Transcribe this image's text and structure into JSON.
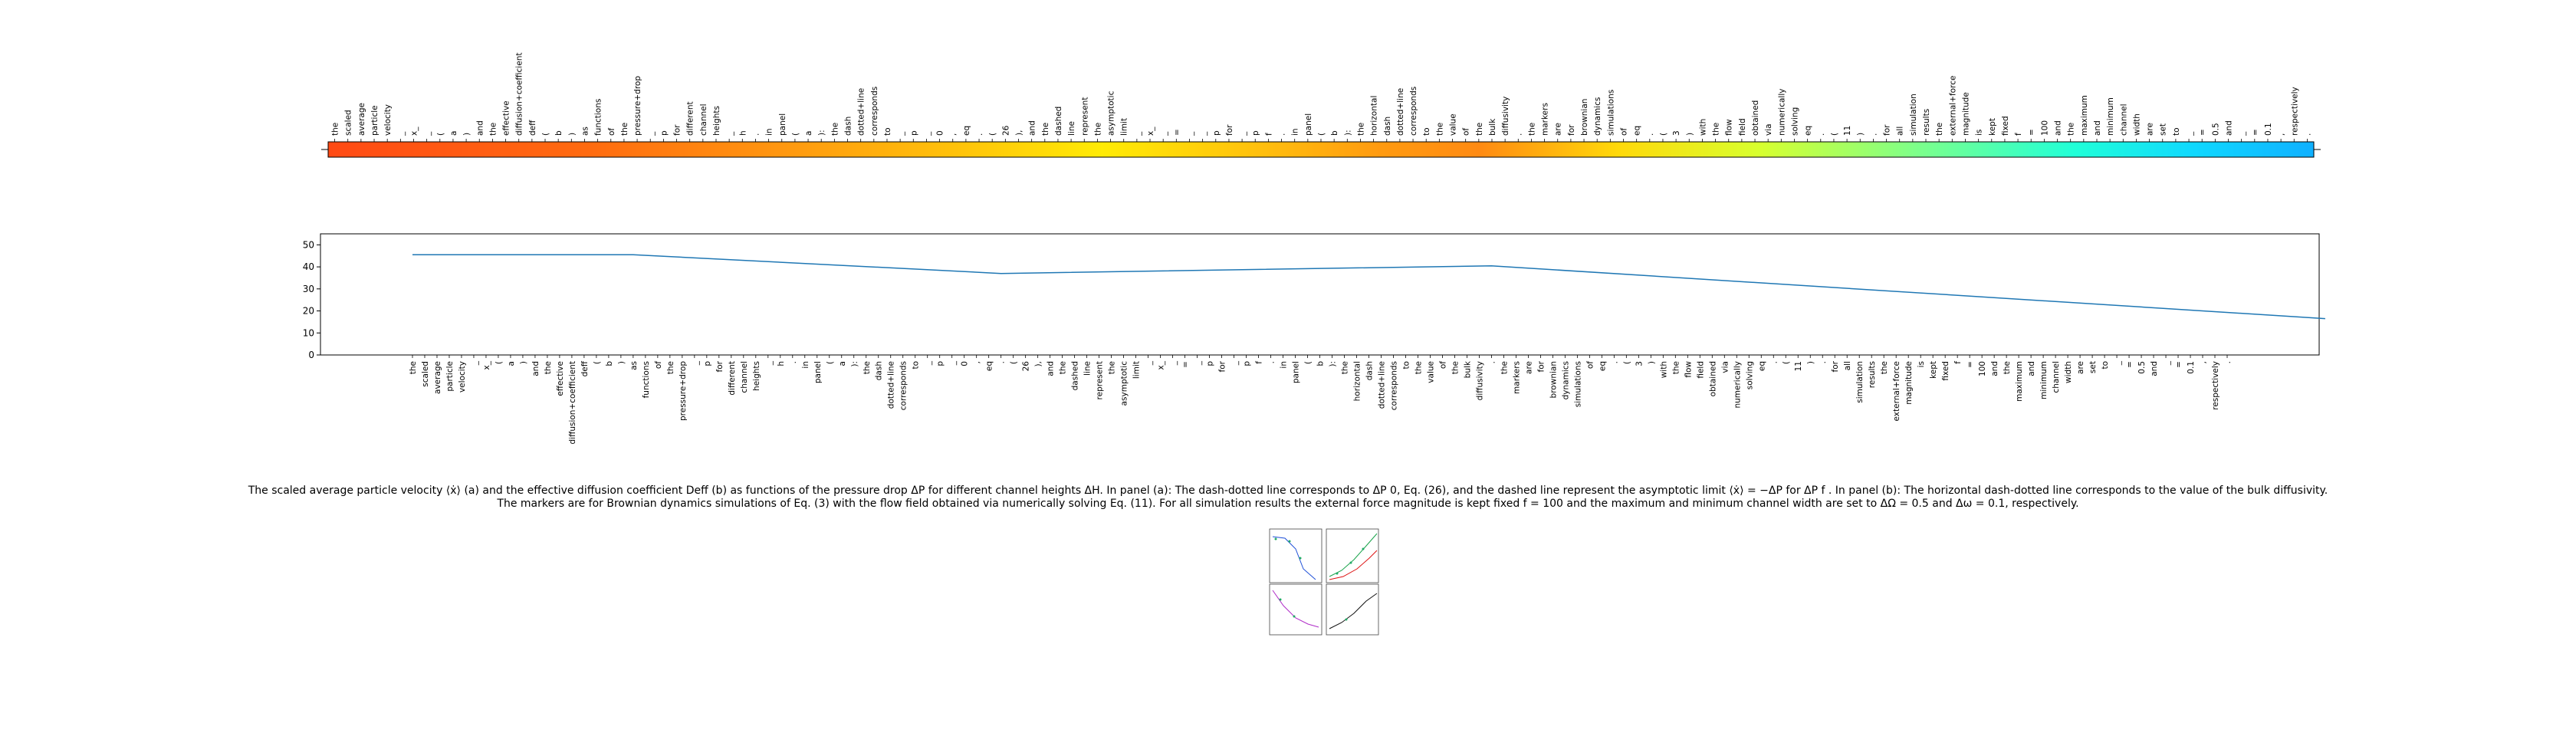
{
  "chart_data": [
    {
      "type": "heatmap",
      "colormap": "jet",
      "tick_labels": [
        "the",
        "scaled",
        "average",
        "particle",
        "velocity",
        "_",
        "x_",
        "_",
        "(",
        "a",
        ")",
        "and",
        "the",
        "effective",
        "diffusion+coefficient",
        "deff",
        "(",
        "b",
        ")",
        "as",
        "functions",
        "of",
        "the",
        "pressure+drop",
        "_",
        "p",
        "for",
        "different",
        "channel",
        "heights",
        "_",
        "h",
        ".",
        "in",
        "panel",
        "(",
        "a",
        "):",
        "the",
        "dash",
        "dotted+line",
        "corresponds",
        "to",
        "_",
        "p",
        "_",
        "0",
        ",",
        "eq",
        ".",
        "(",
        "26",
        "),",
        "and",
        "the",
        "dashed",
        "line",
        "represent",
        "the",
        "asymptotic",
        "limit",
        "_",
        "x_",
        "_",
        "=",
        "_",
        "_",
        "p",
        "for",
        "_",
        "p",
        "f",
        ".",
        "in",
        "panel",
        "(",
        "b",
        "):",
        "the",
        "horizontal",
        "dash",
        "dotted+line",
        "corresponds",
        "to",
        "the",
        "value",
        "of",
        "the",
        "bulk",
        "diffusivity",
        ".",
        "the",
        "markers",
        "are",
        "for",
        "brownian",
        "dynamics",
        "simulations",
        "of",
        "eq",
        ".",
        "(",
        "3",
        ")",
        "with",
        "the",
        "flow",
        "field",
        "obtained",
        "via",
        "numerically",
        "solving",
        "eq",
        ".",
        "(",
        "11",
        ")",
        ".",
        "for",
        "all",
        "simulation",
        "results",
        "the",
        "external+force",
        "magnitude",
        "is",
        "kept",
        "fixed",
        "f",
        "=",
        "100",
        "and",
        "the",
        "maximum",
        "and",
        "minimum",
        "channel",
        "width",
        "are",
        "set",
        "to",
        "_",
        "=",
        "0.5",
        "and",
        "_",
        "=",
        "0.1",
        ",",
        "respectively",
        "."
      ]
    },
    {
      "type": "line",
      "ylim": [
        0,
        55
      ],
      "yticks": [
        0,
        10,
        20,
        30,
        40,
        50
      ],
      "line_color": "#1f77b4",
      "x_tick_labels": [
        "the",
        "scaled",
        "average",
        "particle",
        "velocity",
        "_",
        "x_",
        "(",
        "a",
        ")",
        "and",
        "the",
        "effective",
        "diffusion+coefficient",
        "deff",
        "(",
        "b",
        ")",
        "as",
        "functions",
        "of",
        "the",
        "pressure+drop",
        "_",
        "p",
        "for",
        "different",
        "channel",
        "heights",
        "_",
        "h",
        ".",
        "in",
        "panel",
        "(",
        "a",
        "):",
        "the",
        "dash",
        "dotted+line",
        "corresponds",
        "to",
        "_",
        "p",
        "_",
        "0",
        ",",
        "eq",
        ".",
        "(",
        "26",
        "),",
        "and",
        "the",
        "dashed",
        "line",
        "represent",
        "the",
        "asymptotic",
        "limit",
        "_",
        "x_",
        "_",
        "=",
        "_",
        "p",
        "for",
        "_",
        "p",
        "f",
        ".",
        "in",
        "panel",
        "(",
        "b",
        "):",
        "the",
        "horizontal",
        "dash",
        "dotted+line",
        "corresponds",
        "to",
        "the",
        "value",
        "of",
        "the",
        "bulk",
        "diffusivity",
        ".",
        "the",
        "markers",
        "are",
        "for",
        "brownian",
        "dynamics",
        "simulations",
        "of",
        "eq",
        ".",
        "(",
        "3",
        ")",
        "with",
        "the",
        "flow",
        "field",
        "obtained",
        "via",
        "numerically",
        "solving",
        "eq",
        ".",
        "(",
        "11",
        ")",
        ".",
        "for",
        "all",
        "simulation",
        "results",
        "the",
        "external+force",
        "magnitude",
        "is",
        "kept",
        "fixed",
        "f",
        "=",
        "100",
        "and",
        "the",
        "maximum",
        "and",
        "minimum",
        "channel",
        "width",
        "are",
        "set",
        "to",
        "_",
        "=",
        "0.5",
        "and",
        "_",
        "=",
        "0.1",
        ",",
        "respectively",
        "."
      ],
      "series": [
        {
          "points": [
            [
              0,
              45.5
            ],
            [
              18,
              45.5
            ],
            [
              48,
              37
            ],
            [
              88,
              40.5
            ],
            [
              156,
              16.5
            ]
          ]
        }
      ]
    }
  ],
  "caption": [
    "The scaled average particle velocity ⟨ẋ⟩ (a) and the effective diffusion coefficient Deff (b) as functions of the pressure drop ΔP for different channel heights ΔH. In panel (a): The dash-dotted line corresponds to ΔP 0, Eq. (26), and the dashed line represent the asymptotic limit ⟨ẋ⟩ = −ΔP for ΔP f . In panel (b): The horizontal dash-dotted line corresponds to the value of the bulk diffusivity.",
    "The markers are for Brownian dynamics simulations of Eq. (3) with the flow field obtained via numerically solving Eq. (11). For all simulation results the external force magnitude is kept fixed f = 100 and the maximum and minimum channel width are set to ΔΩ = 0.5 and Δω = 0.1, respectively."
  ]
}
